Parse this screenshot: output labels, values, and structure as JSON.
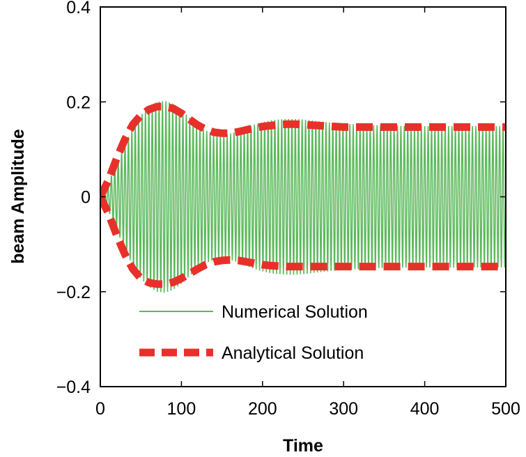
{
  "chart_data": {
    "type": "line",
    "title": "",
    "xlabel": "Time",
    "ylabel": "beam Amplitude",
    "xlim": [
      0,
      500
    ],
    "ylim": [
      -0.4,
      0.4
    ],
    "x_ticks": [
      0,
      100,
      200,
      300,
      400,
      500
    ],
    "x_tick_labels": [
      "0",
      "100",
      "200",
      "300",
      "400",
      "500"
    ],
    "y_ticks": [
      -0.4,
      -0.2,
      0,
      0.2,
      0.4
    ],
    "y_tick_labels": [
      "−0.4",
      "−0.2",
      "0",
      "0.2",
      "0.4"
    ],
    "grid": false,
    "legend_position": "lower-center",
    "series": [
      {
        "name": "Numerical Solution",
        "style": "solid-oscillation",
        "color": "#5cb85c",
        "oscillation_period": 4.2,
        "envelope": {
          "x": [
            0,
            10,
            20,
            30,
            40,
            50,
            60,
            70,
            80,
            90,
            100,
            110,
            120,
            130,
            140,
            150,
            160,
            170,
            180,
            190,
            200,
            210,
            220,
            230,
            240,
            250,
            260,
            270,
            280,
            300,
            350,
            400,
            450,
            500
          ],
          "y": [
            0.0,
            0.03,
            0.07,
            0.11,
            0.145,
            0.172,
            0.19,
            0.2,
            0.202,
            0.196,
            0.183,
            0.167,
            0.152,
            0.14,
            0.133,
            0.131,
            0.133,
            0.138,
            0.145,
            0.152,
            0.157,
            0.161,
            0.163,
            0.164,
            0.164,
            0.163,
            0.161,
            0.159,
            0.157,
            0.154,
            0.15,
            0.149,
            0.149,
            0.149
          ]
        }
      },
      {
        "name": "Analytical Solution",
        "style": "dashed",
        "color": "#e8302a",
        "x": [
          0,
          10,
          20,
          30,
          40,
          50,
          60,
          70,
          80,
          90,
          100,
          110,
          120,
          130,
          140,
          150,
          160,
          170,
          180,
          190,
          200,
          210,
          220,
          230,
          240,
          250,
          260,
          280,
          300,
          350,
          400,
          450,
          500
        ],
        "upper": [
          0.0,
          0.035,
          0.08,
          0.12,
          0.152,
          0.172,
          0.184,
          0.19,
          0.19,
          0.186,
          0.176,
          0.163,
          0.151,
          0.142,
          0.136,
          0.134,
          0.134,
          0.137,
          0.141,
          0.145,
          0.148,
          0.15,
          0.152,
          0.153,
          0.153,
          0.152,
          0.151,
          0.149,
          0.147,
          0.147,
          0.147,
          0.147,
          0.147
        ],
        "lower": [
          0.0,
          -0.035,
          -0.08,
          -0.12,
          -0.152,
          -0.172,
          -0.181,
          -0.184,
          -0.184,
          -0.18,
          -0.172,
          -0.162,
          -0.152,
          -0.143,
          -0.137,
          -0.134,
          -0.133,
          -0.134,
          -0.137,
          -0.14,
          -0.143,
          -0.145,
          -0.146,
          -0.147,
          -0.147,
          -0.147,
          -0.147,
          -0.147,
          -0.147,
          -0.147,
          -0.147,
          -0.147,
          -0.147
        ]
      }
    ],
    "legend": [
      {
        "label": "Numerical Solution",
        "color": "#5cb85c",
        "style": "solid"
      },
      {
        "label": "Analytical Solution",
        "color": "#e8302a",
        "style": "dashed"
      }
    ]
  }
}
